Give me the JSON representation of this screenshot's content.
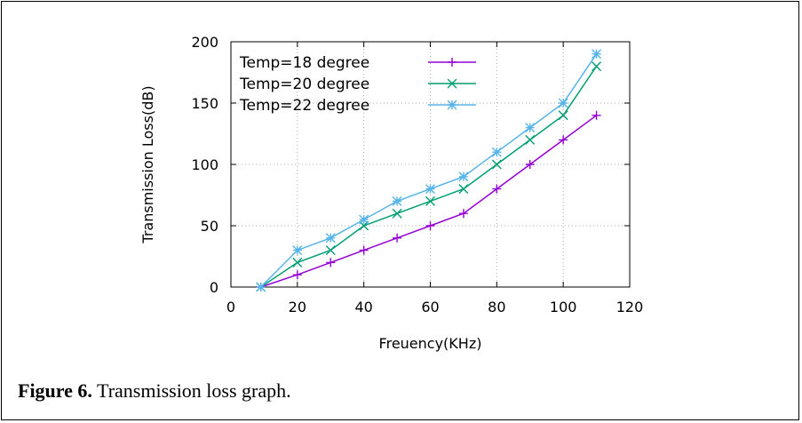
{
  "caption": {
    "label": "Figure 6.",
    "text": " Transmission loss graph."
  },
  "chart_data": {
    "type": "line",
    "xlabel": "Freuency(KHz)",
    "ylabel": "Transmission Loss(dB)",
    "xlim": [
      0,
      120
    ],
    "ylim": [
      0,
      200
    ],
    "xticks": [
      0,
      20,
      40,
      60,
      80,
      100,
      120
    ],
    "yticks": [
      0,
      50,
      100,
      150,
      200
    ],
    "grid": true,
    "legend_position": "top-left",
    "x": [
      9,
      20,
      30,
      40,
      50,
      60,
      70,
      80,
      90,
      100,
      110
    ],
    "series": [
      {
        "name": "Temp=18 degree",
        "color": "#9400d3",
        "marker": "plus",
        "values": [
          0,
          10,
          20,
          30,
          40,
          50,
          60,
          80,
          100,
          120,
          140
        ]
      },
      {
        "name": "Temp=20 degree",
        "color": "#009e73",
        "marker": "cross",
        "values": [
          0,
          20,
          30,
          50,
          60,
          70,
          80,
          100,
          120,
          140,
          180
        ]
      },
      {
        "name": "Temp=22 degree",
        "color": "#56b4e9",
        "marker": "star",
        "values": [
          0,
          30,
          40,
          55,
          70,
          80,
          90,
          110,
          130,
          150,
          190
        ]
      }
    ]
  }
}
